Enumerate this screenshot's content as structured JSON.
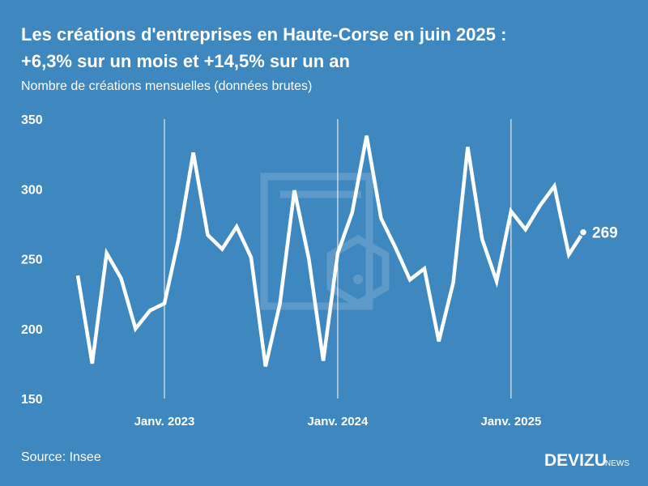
{
  "chart_data": {
    "type": "line",
    "title": "Les créations d'entreprises en Haute-Corse en juin 2025 :",
    "subtitle_line": "+6,3% sur un mois et +14,5% sur un an",
    "subtitle": "Nombre de créations mensuelles (données brutes)",
    "source": "Source: Insee",
    "brand": "DEVIZU",
    "brand_suffix": "NEWS",
    "categories": [
      null,
      null,
      null,
      null,
      null,
      null,
      "Janv. 2023",
      null,
      null,
      null,
      null,
      null,
      null,
      null,
      null,
      null,
      null,
      null,
      "Janv. 2024",
      null,
      null,
      null,
      null,
      null,
      null,
      null,
      null,
      null,
      null,
      null,
      "Janv. 2025",
      null,
      null,
      null,
      null,
      null
    ],
    "series": [
      {
        "name": "Créations",
        "color": "#ffffff",
        "values": [
          238,
          175,
          254,
          236,
          200,
          213,
          218,
          265,
          326,
          267,
          257,
          273,
          251,
          173,
          218,
          299,
          250,
          177,
          254,
          283,
          338,
          279,
          258,
          235,
          243,
          191,
          233,
          330,
          264,
          234,
          284,
          271,
          288,
          302,
          253,
          269
        ]
      }
    ],
    "ylim": [
      150,
      350
    ],
    "yticks": [
      150,
      200,
      250,
      300,
      350
    ],
    "vertical_grid": true
  }
}
